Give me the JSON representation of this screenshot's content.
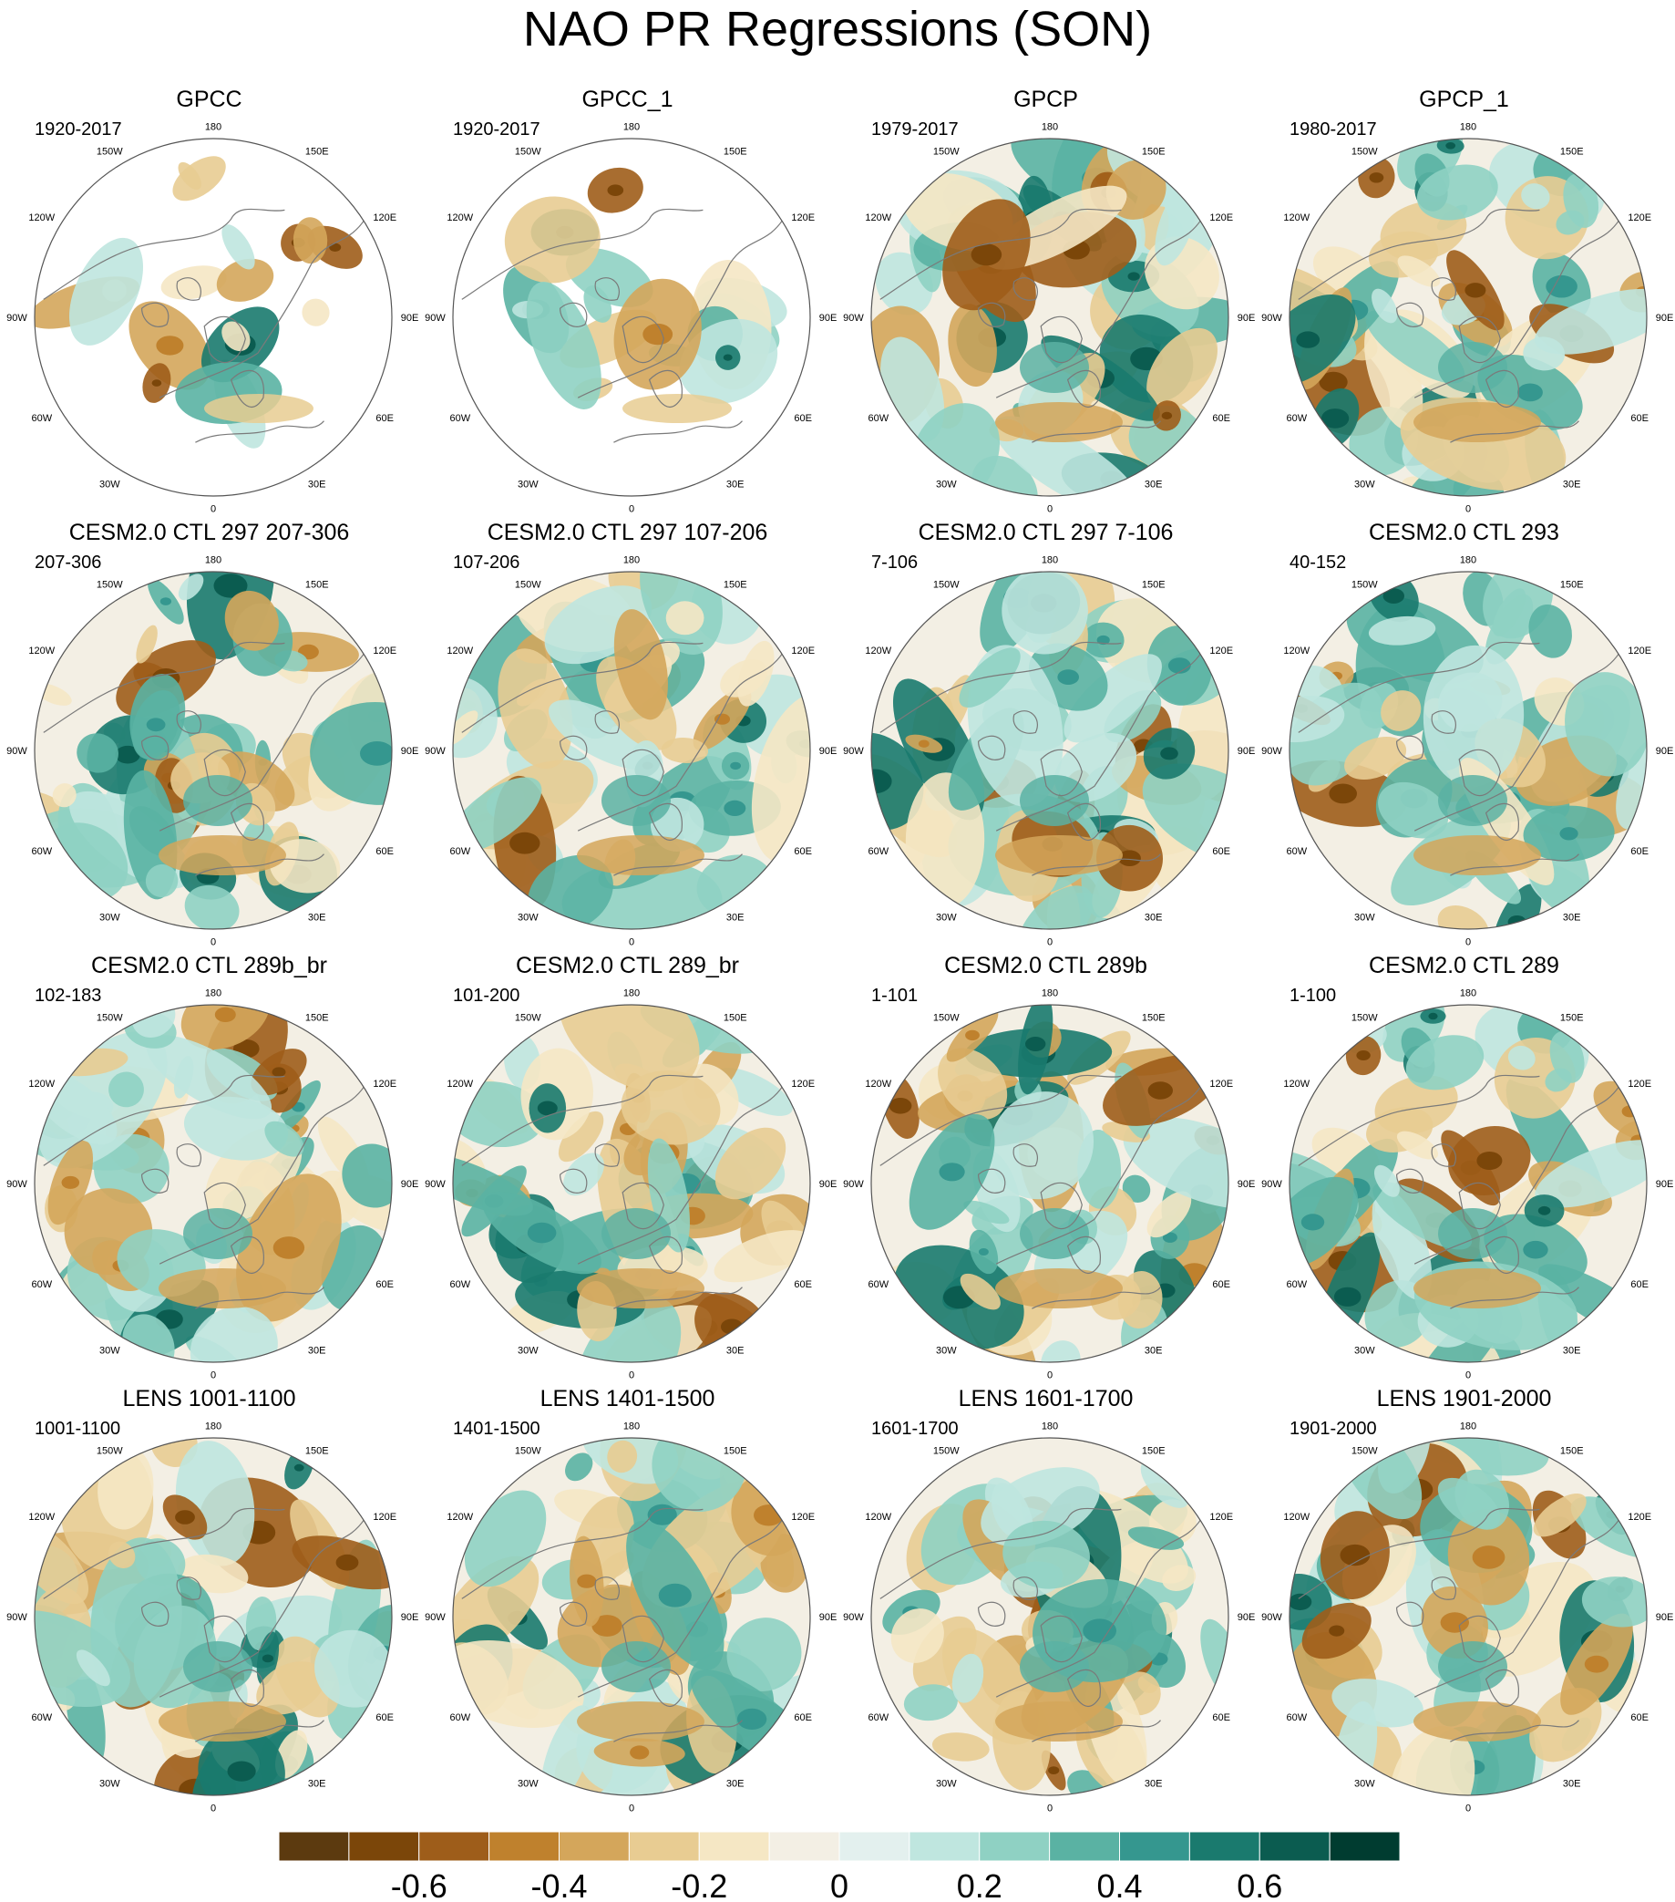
{
  "chart_data": {
    "type": "polar-stereographic contour maps (4x4 grid)",
    "title": "NAO PR Regressions (SON)",
    "variable": "precipitation regression on NAO",
    "projection": "north polar stereographic",
    "longitude_labels": [
      "180",
      "150E",
      "120E",
      "90E",
      "60E",
      "30E",
      "0",
      "30W",
      "60W",
      "90W",
      "120W",
      "150W"
    ],
    "panels": [
      {
        "name": "GPCC",
        "years": "1920-2017",
        "coverage": "land only"
      },
      {
        "name": "GPCC_1",
        "years": "1920-2017",
        "coverage": "land only"
      },
      {
        "name": "GPCP",
        "years": "1979-2017",
        "coverage": "global"
      },
      {
        "name": "GPCP_1",
        "years": "1980-2017",
        "coverage": "global"
      },
      {
        "name": "CESM2.0 CTL 297 207-306",
        "years": "207-306",
        "coverage": "global"
      },
      {
        "name": "CESM2.0 CTL 297 107-206",
        "years": "107-206",
        "coverage": "global"
      },
      {
        "name": "CESM2.0 CTL 297 7-106",
        "years": "7-106",
        "coverage": "global"
      },
      {
        "name": "CESM2.0 CTL 293",
        "years": "40-152",
        "coverage": "global"
      },
      {
        "name": "CESM2.0 CTL 289b_br",
        "years": "102-183",
        "coverage": "global"
      },
      {
        "name": "CESM2.0 CTL 289_br",
        "years": "101-200",
        "coverage": "global"
      },
      {
        "name": "CESM2.0 CTL 289b",
        "years": "1-101",
        "coverage": "global"
      },
      {
        "name": "CESM2.0 CTL 289",
        "years": "1-100",
        "coverage": "global"
      },
      {
        "name": "LENS 1001-1100",
        "years": "1001-1100",
        "coverage": "global"
      },
      {
        "name": "LENS 1401-1500",
        "years": "1401-1500",
        "coverage": "global"
      },
      {
        "name": "LENS 1601-1700",
        "years": "1601-1700",
        "coverage": "global"
      },
      {
        "name": "LENS 1901-2000",
        "years": "1901-2000",
        "coverage": "global"
      }
    ],
    "colorbar": {
      "colors": [
        "#5c3a0f",
        "#7b4609",
        "#9e5d1a",
        "#bf812d",
        "#d4a65b",
        "#e8cc92",
        "#f5e7c4",
        "#f3efe4",
        "#e3f0ee",
        "#bfe6df",
        "#8fd1c3",
        "#5ab2a3",
        "#35978f",
        "#1a7a6e",
        "#0b5c50",
        "#003c30"
      ],
      "levels": [
        -0.7,
        -0.6,
        -0.5,
        -0.4,
        -0.3,
        -0.2,
        -0.1,
        0,
        0.1,
        0.2,
        0.3,
        0.4,
        0.5,
        0.6,
        0.7
      ],
      "tick_labels": [
        {
          "text": "-0.6",
          "value": -0.6
        },
        {
          "text": "-0.4",
          "value": -0.4
        },
        {
          "text": "-0.2",
          "value": -0.2
        },
        {
          "text": "0",
          "value": 0
        },
        {
          "text": "0.2",
          "value": 0.2
        },
        {
          "text": "0.4",
          "value": 0.4
        },
        {
          "text": "0.6",
          "value": 0.6
        }
      ]
    }
  },
  "colors": {
    "land_outline": "#7a7a7a",
    "circle": "#555555",
    "missing": "#ffffff"
  }
}
